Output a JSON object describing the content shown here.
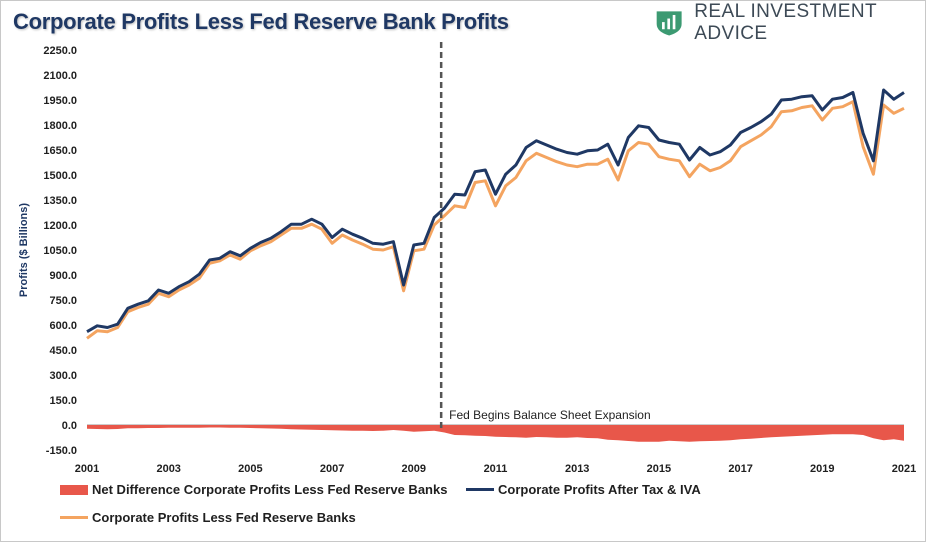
{
  "header": {
    "title": "Corporate Profits Less Fed Reserve Bank Profits",
    "brand": "REAL INVESTMENT ADVICE"
  },
  "colors": {
    "area": "#e8574a",
    "navy": "#1f3864",
    "orange": "#f4a460",
    "annotation_line": "#555555"
  },
  "icons": {
    "logo": "shield-chart-icon"
  },
  "chart_data": {
    "type": "line",
    "title": "Corporate Profits Less Fed Reserve Bank Profits",
    "ylabel": "Profits ($ Billions)",
    "ylim": [
      -150,
      2250
    ],
    "xlim": [
      2001,
      2021
    ],
    "y_ticks": [
      "2250.0",
      "2100.0",
      "1950.0",
      "1800.0",
      "1650.0",
      "1500.0",
      "1350.0",
      "1200.0",
      "1050.0",
      "900.0",
      "750.0",
      "600.0",
      "450.0",
      "300.0",
      "150.0",
      "0.0",
      "-150.0"
    ],
    "x_ticks": [
      "2001",
      "2003",
      "2005",
      "2007",
      "2009",
      "2011",
      "2013",
      "2015",
      "2017",
      "2019",
      "2021"
    ],
    "x": [
      2001.0,
      2001.25,
      2001.5,
      2001.75,
      2002.0,
      2002.25,
      2002.5,
      2002.75,
      2003.0,
      2003.25,
      2003.5,
      2003.75,
      2004.0,
      2004.25,
      2004.5,
      2004.75,
      2005.0,
      2005.25,
      2005.5,
      2005.75,
      2006.0,
      2006.25,
      2006.5,
      2006.75,
      2007.0,
      2007.25,
      2007.5,
      2007.75,
      2008.0,
      2008.25,
      2008.5,
      2008.75,
      2009.0,
      2009.25,
      2009.5,
      2009.75,
      2010.0,
      2010.25,
      2010.5,
      2010.75,
      2011.0,
      2011.25,
      2011.5,
      2011.75,
      2012.0,
      2012.25,
      2012.5,
      2012.75,
      2013.0,
      2013.25,
      2013.5,
      2013.75,
      2014.0,
      2014.25,
      2014.5,
      2014.75,
      2015.0,
      2015.25,
      2015.5,
      2015.75,
      2016.0,
      2016.25,
      2016.5,
      2016.75,
      2017.0,
      2017.25,
      2017.5,
      2017.75,
      2018.0,
      2018.25,
      2018.5,
      2018.75,
      2019.0,
      2019.25,
      2019.5,
      2019.75,
      2020.0,
      2020.25,
      2020.5,
      2020.75,
      2021.0
    ],
    "series": [
      {
        "name": "Net Difference Corporate Profits Less Fed Reserve Banks",
        "style": "area",
        "values": [
          -22,
          -24,
          -25,
          -24,
          -20,
          -19,
          -18,
          -18,
          -17,
          -17,
          -17,
          -17,
          -15,
          -15,
          -16,
          -17,
          -18,
          -19,
          -21,
          -23,
          -25,
          -27,
          -29,
          -30,
          -32,
          -33,
          -34,
          -35,
          -36,
          -34,
          -30,
          -35,
          -40,
          -37,
          -35,
          -45,
          -60,
          -62,
          -64,
          -66,
          -70,
          -72,
          -74,
          -76,
          -72,
          -74,
          -76,
          -76,
          -74,
          -78,
          -80,
          -88,
          -92,
          -96,
          -100,
          -101,
          -100,
          -95,
          -98,
          -100,
          -98,
          -96,
          -94,
          -92,
          -85,
          -82,
          -78,
          -74,
          -70,
          -68,
          -65,
          -62,
          -58,
          -55,
          -56,
          -55,
          -60,
          -80,
          -92,
          -85,
          -95
        ]
      },
      {
        "name": "Corporate Profits After Tax & IVA",
        "style": "line",
        "values": [
          560,
          595,
          585,
          605,
          700,
          725,
          745,
          810,
          790,
          830,
          860,
          905,
          990,
          1000,
          1040,
          1015,
          1060,
          1095,
          1120,
          1160,
          1205,
          1205,
          1235,
          1205,
          1125,
          1175,
          1145,
          1120,
          1090,
          1085,
          1100,
          840,
          1080,
          1090,
          1245,
          1300,
          1385,
          1380,
          1520,
          1530,
          1385,
          1505,
          1560,
          1665,
          1705,
          1680,
          1655,
          1635,
          1625,
          1645,
          1650,
          1685,
          1560,
          1725,
          1795,
          1785,
          1710,
          1695,
          1685,
          1590,
          1665,
          1620,
          1640,
          1680,
          1755,
          1785,
          1820,
          1865,
          1950,
          1955,
          1970,
          1975,
          1890,
          1955,
          1965,
          1995,
          1750,
          1585,
          2010,
          1955,
          1995
        ]
      },
      {
        "name": "Corporate Profits Less Fed Reserve Banks",
        "style": "line",
        "values": [
          520,
          565,
          560,
          585,
          680,
          705,
          725,
          790,
          770,
          810,
          840,
          880,
          970,
          985,
          1020,
          995,
          1045,
          1075,
          1100,
          1140,
          1180,
          1180,
          1205,
          1175,
          1090,
          1140,
          1110,
          1085,
          1055,
          1050,
          1070,
          805,
          1045,
          1055,
          1200,
          1255,
          1315,
          1305,
          1455,
          1465,
          1315,
          1435,
          1485,
          1585,
          1630,
          1605,
          1580,
          1560,
          1550,
          1565,
          1565,
          1595,
          1470,
          1645,
          1695,
          1685,
          1610,
          1595,
          1585,
          1490,
          1565,
          1525,
          1545,
          1585,
          1670,
          1705,
          1740,
          1790,
          1880,
          1885,
          1905,
          1915,
          1830,
          1900,
          1910,
          1940,
          1670,
          1505,
          1920,
          1870,
          1900
        ]
      }
    ],
    "annotations": [
      {
        "x": 2009.67,
        "text": "Fed Begins Balance Sheet Expansion",
        "style": "dashed-vertical-line"
      }
    ],
    "grid": false,
    "legend": "bottom"
  }
}
